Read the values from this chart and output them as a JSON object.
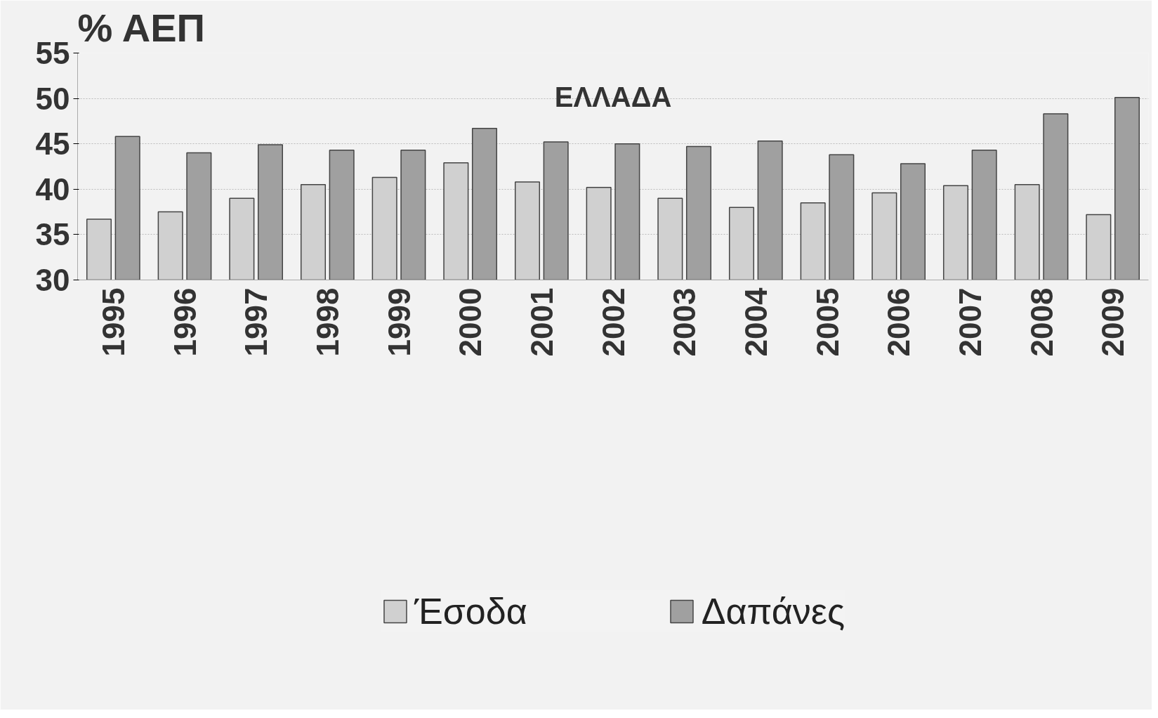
{
  "chart_data": {
    "type": "bar",
    "title": "ΕΛΛΑΔΑ",
    "ylabel": "% ΑΕΠ",
    "categories": [
      "1995",
      "1996",
      "1997",
      "1998",
      "1999",
      "2000",
      "2001",
      "2002",
      "2003",
      "2004",
      "2005",
      "2006",
      "2007",
      "2008",
      "2009"
    ],
    "series": [
      {
        "name": "Έσοδα",
        "color": "#d0d0d0",
        "values": [
          36.7,
          37.5,
          39.0,
          40.5,
          41.3,
          42.9,
          40.8,
          40.2,
          39.0,
          38.0,
          38.5,
          39.6,
          40.4,
          40.5,
          37.2
        ]
      },
      {
        "name": "Δαπάνες",
        "color": "#a0a0a0",
        "values": [
          45.8,
          44.0,
          44.9,
          44.3,
          44.3,
          46.7,
          45.2,
          45.0,
          44.7,
          45.3,
          43.8,
          42.8,
          44.3,
          48.3,
          50.1
        ]
      }
    ],
    "ylim": [
      30,
      55
    ],
    "yticks": [
      30,
      35,
      40,
      45,
      50,
      55
    ],
    "grid": "y",
    "legend": "bottom"
  }
}
